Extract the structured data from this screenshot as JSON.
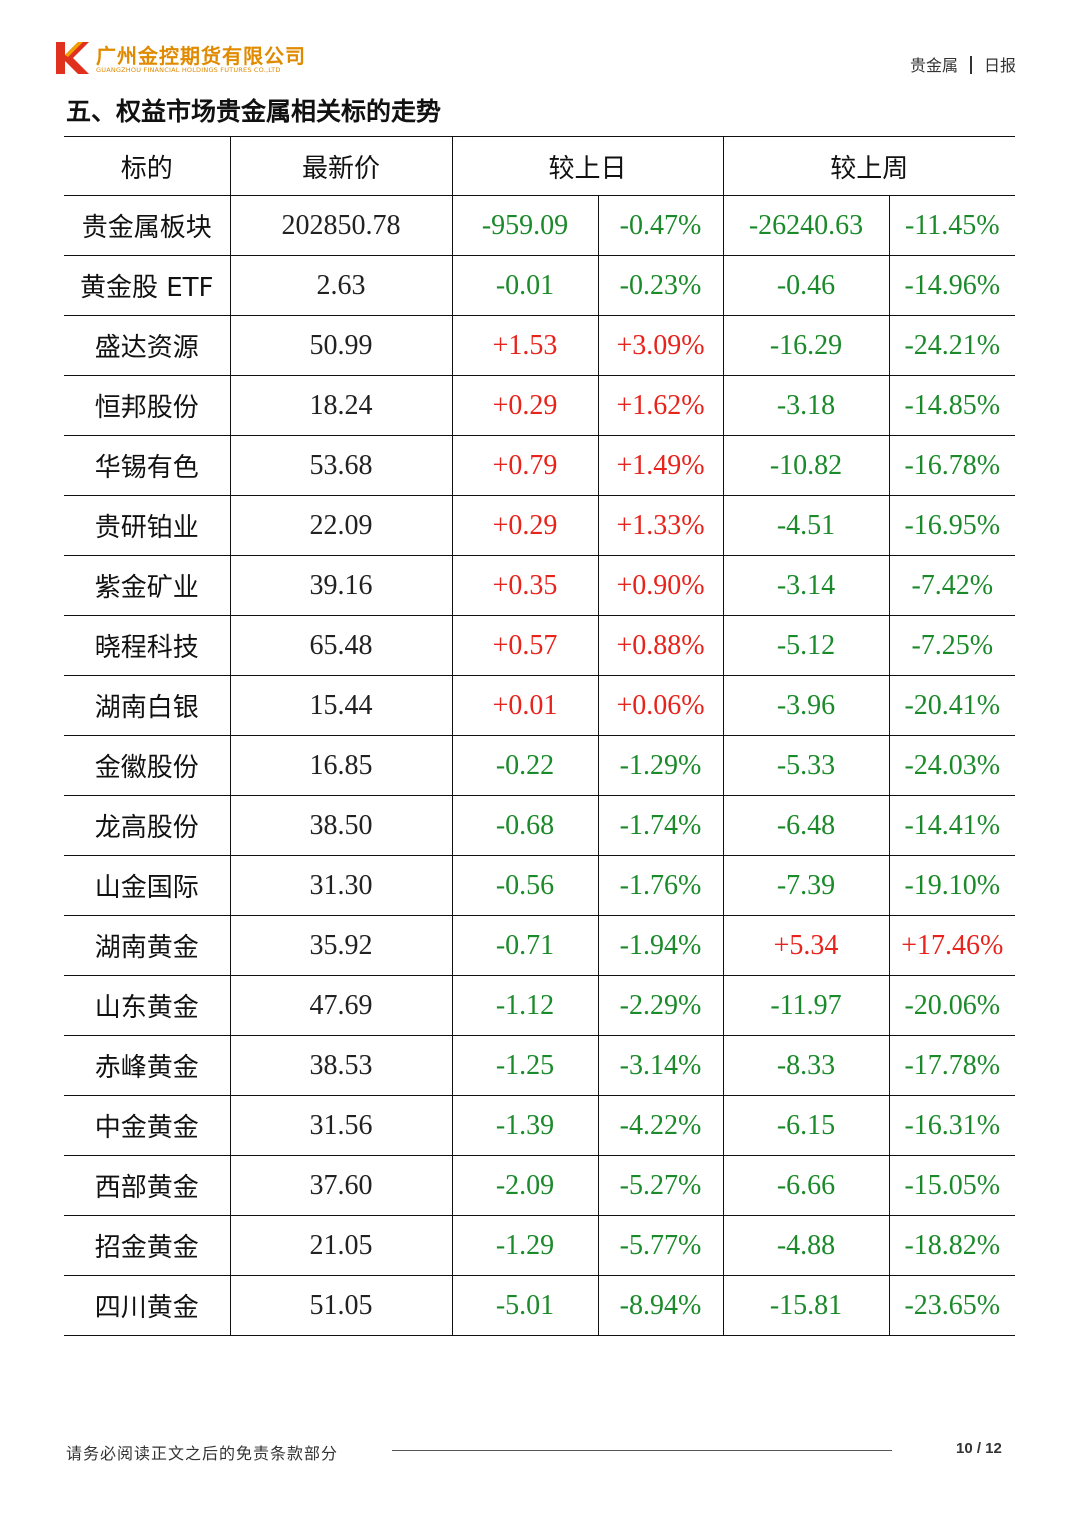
{
  "header": {
    "company_cn": "广州金控期货有限公司",
    "company_en": "GUANGZHOU FINANCIAL HOLDINGS FUTURES CO.,LTD",
    "category": "贵金属",
    "report_type": "日报"
  },
  "section": {
    "title": "五、权益市场贵金属相关标的走势"
  },
  "table": {
    "headers": {
      "name": "标的",
      "price": "最新价",
      "day": "较上日",
      "week": "较上周"
    },
    "rows": [
      {
        "name": "贵金属板块",
        "price": "202850.78",
        "day_chg": "-959.09",
        "day_pct": "-0.47%",
        "week_chg": "-26240.63",
        "week_pct": "-11.45%",
        "day_dir": "down",
        "week_dir": "down"
      },
      {
        "name": "黄金股 ETF",
        "price": "2.63",
        "day_chg": "-0.01",
        "day_pct": "-0.23%",
        "week_chg": "-0.46",
        "week_pct": "-14.96%",
        "day_dir": "down",
        "week_dir": "down"
      },
      {
        "name": "盛达资源",
        "price": "50.99",
        "day_chg": "+1.53",
        "day_pct": "+3.09%",
        "week_chg": "-16.29",
        "week_pct": "-24.21%",
        "day_dir": "up",
        "week_dir": "down"
      },
      {
        "name": "恒邦股份",
        "price": "18.24",
        "day_chg": "+0.29",
        "day_pct": "+1.62%",
        "week_chg": "-3.18",
        "week_pct": "-14.85%",
        "day_dir": "up",
        "week_dir": "down"
      },
      {
        "name": "华锡有色",
        "price": "53.68",
        "day_chg": "+0.79",
        "day_pct": "+1.49%",
        "week_chg": "-10.82",
        "week_pct": "-16.78%",
        "day_dir": "up",
        "week_dir": "down"
      },
      {
        "name": "贵研铂业",
        "price": "22.09",
        "day_chg": "+0.29",
        "day_pct": "+1.33%",
        "week_chg": "-4.51",
        "week_pct": "-16.95%",
        "day_dir": "up",
        "week_dir": "down"
      },
      {
        "name": "紫金矿业",
        "price": "39.16",
        "day_chg": "+0.35",
        "day_pct": "+0.90%",
        "week_chg": "-3.14",
        "week_pct": "-7.42%",
        "day_dir": "up",
        "week_dir": "down"
      },
      {
        "name": "晓程科技",
        "price": "65.48",
        "day_chg": "+0.57",
        "day_pct": "+0.88%",
        "week_chg": "-5.12",
        "week_pct": "-7.25%",
        "day_dir": "up",
        "week_dir": "down"
      },
      {
        "name": "湖南白银",
        "price": "15.44",
        "day_chg": "+0.01",
        "day_pct": "+0.06%",
        "week_chg": "-3.96",
        "week_pct": "-20.41%",
        "day_dir": "up",
        "week_dir": "down"
      },
      {
        "name": "金徽股份",
        "price": "16.85",
        "day_chg": "-0.22",
        "day_pct": "-1.29%",
        "week_chg": "-5.33",
        "week_pct": "-24.03%",
        "day_dir": "down",
        "week_dir": "down"
      },
      {
        "name": "龙高股份",
        "price": "38.50",
        "day_chg": "-0.68",
        "day_pct": "-1.74%",
        "week_chg": "-6.48",
        "week_pct": "-14.41%",
        "day_dir": "down",
        "week_dir": "down"
      },
      {
        "name": "山金国际",
        "price": "31.30",
        "day_chg": "-0.56",
        "day_pct": "-1.76%",
        "week_chg": "-7.39",
        "week_pct": "-19.10%",
        "day_dir": "down",
        "week_dir": "down"
      },
      {
        "name": "湖南黄金",
        "price": "35.92",
        "day_chg": "-0.71",
        "day_pct": "-1.94%",
        "week_chg": "+5.34",
        "week_pct": "+17.46%",
        "day_dir": "down",
        "week_dir": "up"
      },
      {
        "name": "山东黄金",
        "price": "47.69",
        "day_chg": "-1.12",
        "day_pct": "-2.29%",
        "week_chg": "-11.97",
        "week_pct": "-20.06%",
        "day_dir": "down",
        "week_dir": "down"
      },
      {
        "name": "赤峰黄金",
        "price": "38.53",
        "day_chg": "-1.25",
        "day_pct": "-3.14%",
        "week_chg": "-8.33",
        "week_pct": "-17.78%",
        "day_dir": "down",
        "week_dir": "down"
      },
      {
        "name": "中金黄金",
        "price": "31.56",
        "day_chg": "-1.39",
        "day_pct": "-4.22%",
        "week_chg": "-6.15",
        "week_pct": "-16.31%",
        "day_dir": "down",
        "week_dir": "down"
      },
      {
        "name": "西部黄金",
        "price": "37.60",
        "day_chg": "-2.09",
        "day_pct": "-5.27%",
        "week_chg": "-6.66",
        "week_pct": "-15.05%",
        "day_dir": "down",
        "week_dir": "down"
      },
      {
        "name": "招金黄金",
        "price": "21.05",
        "day_chg": "-1.29",
        "day_pct": "-5.77%",
        "week_chg": "-4.88",
        "week_pct": "-18.82%",
        "day_dir": "down",
        "week_dir": "down"
      },
      {
        "name": "四川黄金",
        "price": "51.05",
        "day_chg": "-5.01",
        "day_pct": "-8.94%",
        "week_chg": "-15.81",
        "week_pct": "-23.65%",
        "day_dir": "down",
        "week_dir": "down"
      }
    ]
  },
  "colors": {
    "up": "#e8231c",
    "down": "#1b8a2a",
    "brand": "#e08a00",
    "logo_red": "#e0301e"
  },
  "footer": {
    "disclaimer": "请务必阅读正文之后的免责条款部分",
    "page": "10 / 12"
  }
}
